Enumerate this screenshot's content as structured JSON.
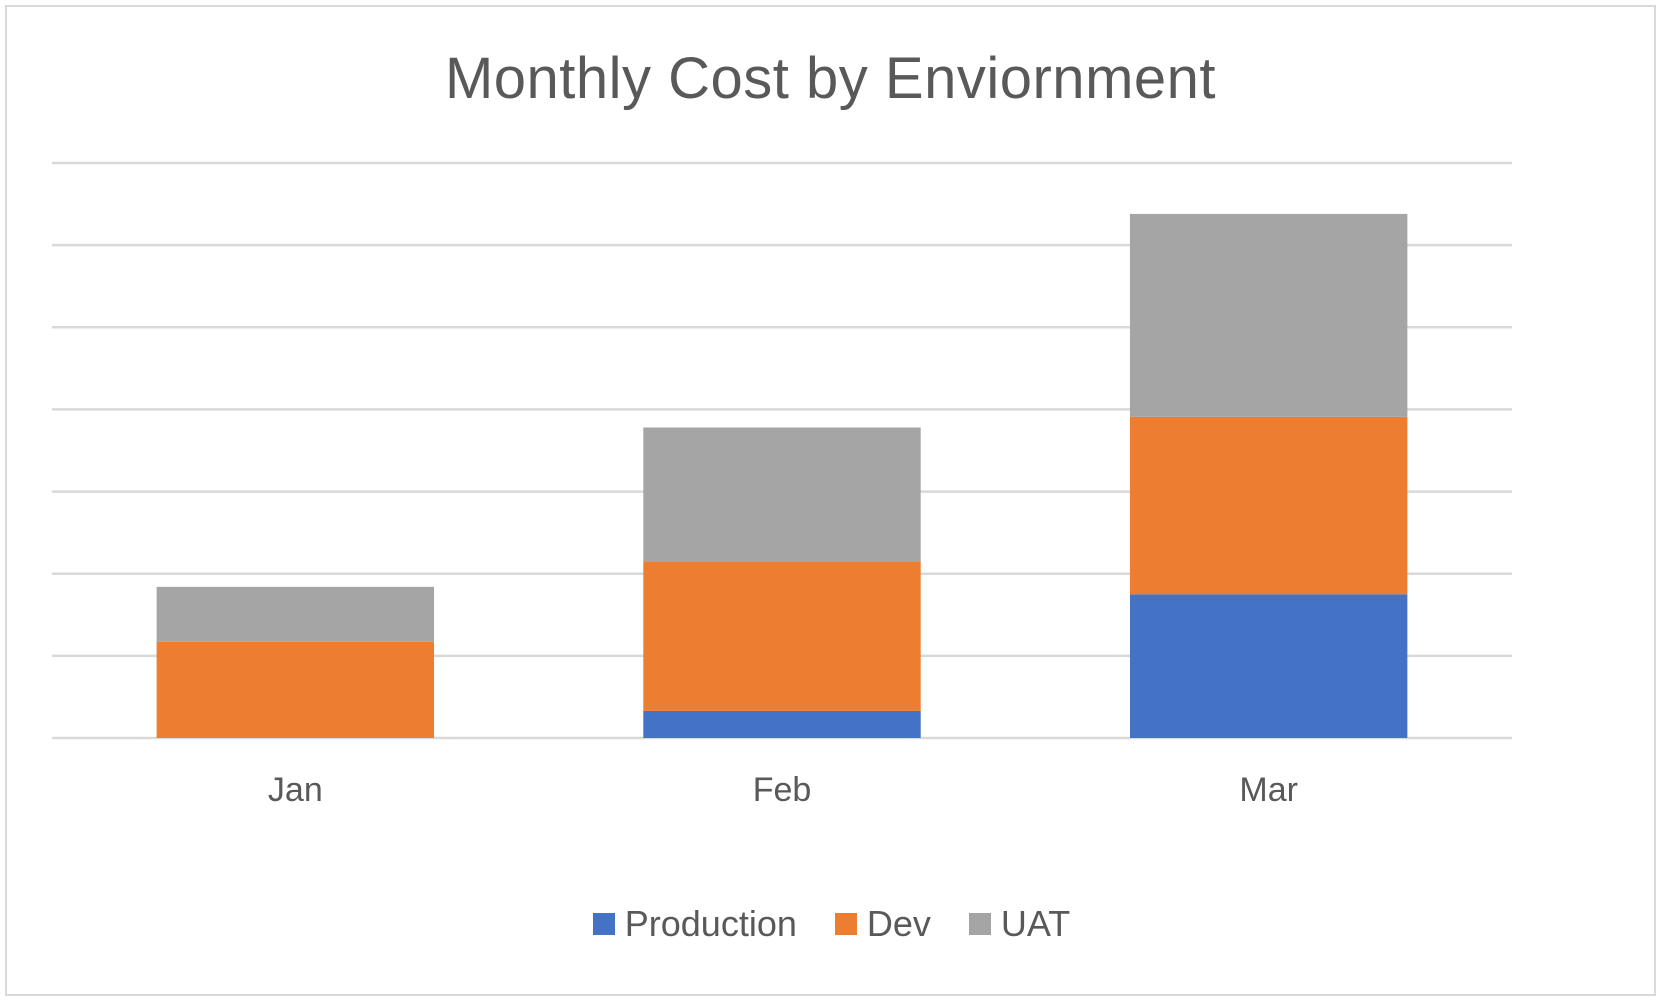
{
  "chart_data": {
    "type": "bar",
    "stacked": true,
    "title": "Monthly Cost by Enviornment",
    "xlabel": "",
    "ylabel": "",
    "categories": [
      "Jan",
      "Feb",
      "Mar"
    ],
    "series": [
      {
        "name": "Production",
        "color": "#4472c4",
        "values": [
          0,
          0.33,
          1.75
        ]
      },
      {
        "name": "Dev",
        "color": "#ed7d31",
        "values": [
          1.17,
          1.82,
          2.16
        ]
      },
      {
        "name": "UAT",
        "color": "#a5a5a5",
        "values": [
          0.67,
          1.63,
          2.47
        ]
      }
    ],
    "ylim": [
      0,
      7
    ],
    "gridlines": true,
    "y_tick_labels_shown": false,
    "legend_position": "bottom"
  }
}
